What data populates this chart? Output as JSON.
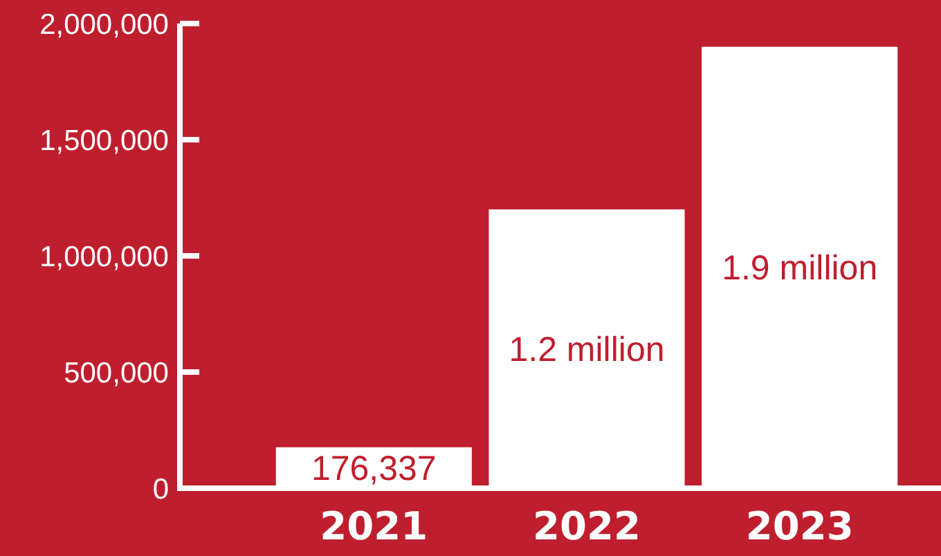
{
  "chart_data": {
    "type": "bar",
    "categories": [
      "2021",
      "2022",
      "2023"
    ],
    "values": [
      176337,
      1200000,
      1900000
    ],
    "value_labels": [
      "176,337",
      "1.2 million",
      "1.9 million"
    ],
    "color": "#ffffff",
    "ylim": [
      0,
      2000000
    ],
    "yticks": [
      {
        "value": 0,
        "label": "0"
      },
      {
        "value": 500000,
        "label": "500,000"
      },
      {
        "value": 1000000,
        "label": "1,000,000"
      },
      {
        "value": 1500000,
        "label": "1,500,000"
      },
      {
        "value": 2000000,
        "label": "2,000,000"
      }
    ],
    "grid": false
  }
}
